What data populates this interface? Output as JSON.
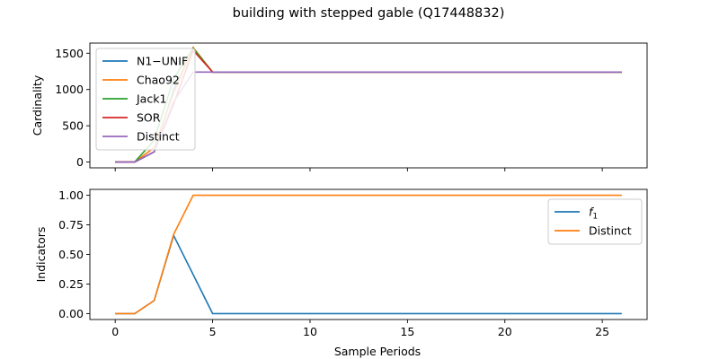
{
  "figure": {
    "title": "building with stepped gable (Q17448832)"
  },
  "chart_data": [
    {
      "type": "line",
      "ylabel": "Cardinality",
      "xlim": [
        -1.3,
        27.3
      ],
      "ylim": [
        -80,
        1640
      ],
      "yticks": [
        0,
        500,
        1000,
        1500
      ],
      "legend": "upper-left",
      "x": [
        0,
        1,
        2,
        3,
        4,
        5,
        6,
        7,
        8,
        9,
        10,
        11,
        12,
        13,
        14,
        15,
        16,
        17,
        18,
        19,
        20,
        21,
        22,
        23,
        24,
        25,
        26
      ],
      "series": [
        {
          "name": "N1−UNIF",
          "color": "#1f77b4",
          "values": [
            0,
            0,
            140,
            1000,
            1560,
            1240,
            1240,
            1240,
            1240,
            1240,
            1240,
            1240,
            1240,
            1240,
            1240,
            1240,
            1240,
            1240,
            1240,
            1240,
            1240,
            1240,
            1240,
            1240,
            1240,
            1240,
            1240
          ]
        },
        {
          "name": "Chao92",
          "color": "#ff7f0e",
          "values": [
            0,
            0,
            200,
            950,
            1580,
            1240,
            1240,
            1240,
            1240,
            1240,
            1240,
            1240,
            1240,
            1240,
            1240,
            1240,
            1240,
            1240,
            1240,
            1240,
            1240,
            1240,
            1240,
            1240,
            1240,
            1240,
            1240
          ]
        },
        {
          "name": "Jack1",
          "color": "#2ca02c",
          "values": [
            0,
            0,
            300,
            1150,
            1570,
            1240,
            1240,
            1240,
            1240,
            1240,
            1240,
            1240,
            1240,
            1240,
            1240,
            1240,
            1240,
            1240,
            1240,
            1240,
            1240,
            1240,
            1240,
            1240,
            1240,
            1240,
            1240
          ]
        },
        {
          "name": "SOR",
          "color": "#d62728",
          "values": [
            0,
            0,
            140,
            800,
            1540,
            1240,
            1240,
            1240,
            1240,
            1240,
            1240,
            1240,
            1240,
            1240,
            1240,
            1240,
            1240,
            1240,
            1240,
            1240,
            1240,
            1240,
            1240,
            1240,
            1240,
            1240,
            1240
          ]
        },
        {
          "name": "Distinct",
          "color": "#9467bd",
          "values": [
            0,
            0,
            140,
            830,
            1240,
            1240,
            1240,
            1240,
            1240,
            1240,
            1240,
            1240,
            1240,
            1240,
            1240,
            1240,
            1240,
            1240,
            1240,
            1240,
            1240,
            1240,
            1240,
            1240,
            1240,
            1240,
            1240
          ]
        }
      ]
    },
    {
      "type": "line",
      "xlabel": "Sample Periods",
      "ylabel": "Indicators",
      "xlim": [
        -1.3,
        27.3
      ],
      "ylim": [
        -0.05,
        1.05
      ],
      "xticks": [
        0,
        5,
        10,
        15,
        20,
        25
      ],
      "yticks": [
        "0.00",
        "0.25",
        "0.50",
        "0.75",
        "1.00"
      ],
      "legend": "upper-right",
      "x": [
        0,
        1,
        2,
        3,
        4,
        5,
        6,
        7,
        8,
        9,
        10,
        11,
        12,
        13,
        14,
        15,
        16,
        17,
        18,
        19,
        20,
        21,
        22,
        23,
        24,
        25,
        26
      ],
      "series": [
        {
          "name": "f",
          "subscript": "1",
          "color": "#1f77b4",
          "values": [
            0,
            0,
            0.11,
            0.66,
            0.33,
            0,
            0,
            0,
            0,
            0,
            0,
            0,
            0,
            0,
            0,
            0,
            0,
            0,
            0,
            0,
            0,
            0,
            0,
            0,
            0,
            0,
            0
          ]
        },
        {
          "name": "Distinct",
          "color": "#ff7f0e",
          "values": [
            0,
            0,
            0.11,
            0.67,
            1,
            1,
            1,
            1,
            1,
            1,
            1,
            1,
            1,
            1,
            1,
            1,
            1,
            1,
            1,
            1,
            1,
            1,
            1,
            1,
            1,
            1,
            1
          ]
        }
      ]
    }
  ]
}
